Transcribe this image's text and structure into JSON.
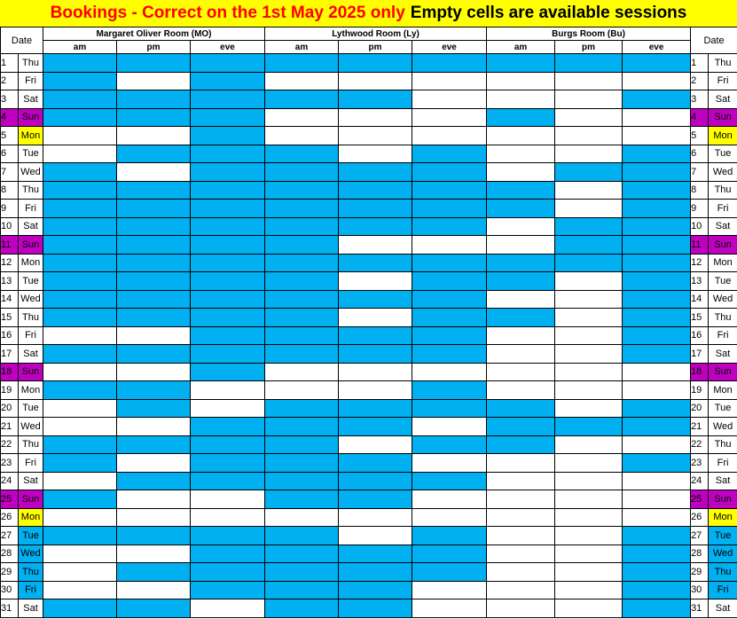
{
  "title": {
    "part1": "Bookings - Correct on the 1st May 2025 only",
    "part2": "Empty cells are available sessions"
  },
  "header": {
    "date_label_left": "Date",
    "date_label_right": "Date",
    "rooms": [
      "Margaret Oliver Room  (MO)",
      "Lythwood Room (Ly)",
      "Burgs Room (Bu)"
    ],
    "sessions": [
      "am",
      "pm",
      "eve"
    ]
  },
  "colors": {
    "booked": "#00b0f0",
    "available": "#ffffff",
    "sunday": "#c000c0",
    "highlight": "#ffff00",
    "title_red": "#ff0000"
  },
  "days": [
    {
      "num": "1",
      "dow": "Thu",
      "style": "plain",
      "slots": [
        1,
        1,
        1,
        1,
        1,
        1,
        1,
        1,
        1
      ]
    },
    {
      "num": "2",
      "dow": "Fri",
      "style": "plain",
      "slots": [
        1,
        0,
        1,
        0,
        0,
        0,
        0,
        0,
        0
      ]
    },
    {
      "num": "3",
      "dow": "Sat",
      "style": "plain",
      "slots": [
        1,
        1,
        1,
        1,
        1,
        0,
        0,
        0,
        1
      ]
    },
    {
      "num": "4",
      "dow": "Sun",
      "style": "sunday",
      "slots": [
        1,
        1,
        1,
        0,
        0,
        0,
        1,
        0,
        0
      ]
    },
    {
      "num": "5",
      "dow": "Mon",
      "style": "highlight",
      "slots": [
        0,
        0,
        1,
        0,
        0,
        0,
        0,
        0,
        0
      ]
    },
    {
      "num": "6",
      "dow": "Tue",
      "style": "plain",
      "slots": [
        0,
        1,
        1,
        1,
        0,
        1,
        0,
        0,
        1
      ]
    },
    {
      "num": "7",
      "dow": "Wed",
      "style": "plain",
      "slots": [
        1,
        0,
        1,
        1,
        1,
        1,
        0,
        1,
        1
      ]
    },
    {
      "num": "8",
      "dow": "Thu",
      "style": "plain",
      "slots": [
        1,
        1,
        1,
        1,
        1,
        1,
        1,
        0,
        1
      ]
    },
    {
      "num": "9",
      "dow": "Fri",
      "style": "plain",
      "slots": [
        1,
        1,
        1,
        1,
        1,
        1,
        1,
        0,
        1
      ]
    },
    {
      "num": "10",
      "dow": "Sat",
      "style": "plain",
      "slots": [
        1,
        1,
        1,
        1,
        1,
        1,
        0,
        1,
        1
      ]
    },
    {
      "num": "11",
      "dow": "Sun",
      "style": "sunday",
      "slots": [
        1,
        1,
        1,
        1,
        0,
        0,
        0,
        1,
        1
      ]
    },
    {
      "num": "12",
      "dow": "Mon",
      "style": "plain",
      "slots": [
        1,
        1,
        1,
        1,
        1,
        1,
        1,
        1,
        1
      ]
    },
    {
      "num": "13",
      "dow": "Tue",
      "style": "plain",
      "slots": [
        1,
        1,
        1,
        1,
        0,
        1,
        1,
        0,
        1
      ]
    },
    {
      "num": "14",
      "dow": "Wed",
      "style": "plain",
      "slots": [
        1,
        1,
        1,
        1,
        1,
        1,
        0,
        0,
        1
      ]
    },
    {
      "num": "15",
      "dow": "Thu",
      "style": "plain",
      "slots": [
        1,
        1,
        1,
        1,
        0,
        1,
        1,
        0,
        1
      ]
    },
    {
      "num": "16",
      "dow": "Fri",
      "style": "plain",
      "slots": [
        0,
        0,
        1,
        1,
        1,
        1,
        0,
        0,
        1
      ]
    },
    {
      "num": "17",
      "dow": "Sat",
      "style": "plain",
      "slots": [
        1,
        1,
        1,
        1,
        1,
        1,
        0,
        0,
        1
      ]
    },
    {
      "num": "18",
      "dow": "Sun",
      "style": "sunday",
      "slots": [
        0,
        0,
        1,
        0,
        0,
        0,
        0,
        0,
        0
      ]
    },
    {
      "num": "19",
      "dow": "Mon",
      "style": "plain",
      "slots": [
        1,
        1,
        0,
        0,
        0,
        1,
        0,
        0,
        0
      ]
    },
    {
      "num": "20",
      "dow": "Tue",
      "style": "plain",
      "slots": [
        0,
        1,
        0,
        1,
        1,
        1,
        1,
        0,
        1
      ]
    },
    {
      "num": "21",
      "dow": "Wed",
      "style": "plain",
      "slots": [
        0,
        0,
        1,
        1,
        1,
        0,
        1,
        1,
        1
      ]
    },
    {
      "num": "22",
      "dow": "Thu",
      "style": "plain",
      "slots": [
        1,
        1,
        1,
        1,
        0,
        1,
        1,
        0,
        0
      ]
    },
    {
      "num": "23",
      "dow": "Fri",
      "style": "plain",
      "slots": [
        1,
        0,
        1,
        1,
        1,
        0,
        0,
        0,
        1
      ]
    },
    {
      "num": "24",
      "dow": "Sat",
      "style": "plain",
      "slots": [
        0,
        1,
        1,
        1,
        1,
        1,
        0,
        0,
        0
      ]
    },
    {
      "num": "25",
      "dow": "Sun",
      "style": "sunday",
      "slots": [
        1,
        0,
        0,
        1,
        1,
        0,
        0,
        0,
        0
      ]
    },
    {
      "num": "26",
      "dow": "Mon",
      "style": "highlight",
      "slots": [
        0,
        0,
        0,
        0,
        0,
        0,
        0,
        0,
        0
      ]
    },
    {
      "num": "27",
      "dow": "Tue",
      "style": "tint",
      "slots": [
        1,
        1,
        1,
        1,
        0,
        1,
        0,
        0,
        1
      ]
    },
    {
      "num": "28",
      "dow": "Wed",
      "style": "tint",
      "slots": [
        0,
        0,
        1,
        1,
        1,
        1,
        0,
        0,
        1
      ]
    },
    {
      "num": "29",
      "dow": "Thu",
      "style": "tint",
      "slots": [
        0,
        1,
        1,
        1,
        1,
        1,
        0,
        0,
        1
      ]
    },
    {
      "num": "30",
      "dow": "Fri",
      "style": "tint",
      "slots": [
        0,
        0,
        1,
        1,
        1,
        0,
        0,
        0,
        1
      ]
    },
    {
      "num": "31",
      "dow": "Sat",
      "style": "plain",
      "slots": [
        1,
        1,
        0,
        1,
        1,
        0,
        0,
        0,
        1
      ]
    }
  ]
}
